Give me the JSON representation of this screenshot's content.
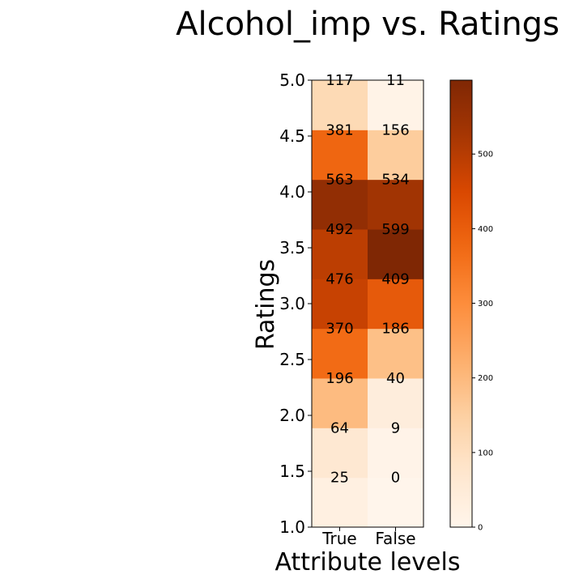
{
  "chart_data": {
    "type": "heatmap",
    "title": "Alcohol_imp vs. Ratings",
    "xlabel": "Attribute levels",
    "ylabel": "Ratings",
    "x_categories": [
      "True",
      "False"
    ],
    "y_categories": [
      "1.0",
      "1.5",
      "2.0",
      "2.5",
      "3.0",
      "3.5",
      "4.0",
      "4.5",
      "5.0"
    ],
    "y_ticks": [
      "1.0",
      "1.5",
      "2.0",
      "2.5",
      "3.0",
      "3.5",
      "4.0",
      "4.5",
      "5.0"
    ],
    "values": [
      [
        25,
        0
      ],
      [
        64,
        9
      ],
      [
        196,
        40
      ],
      [
        370,
        186
      ],
      [
        476,
        409
      ],
      [
        492,
        599
      ],
      [
        563,
        534
      ],
      [
        381,
        156
      ],
      [
        117,
        11
      ]
    ],
    "colormap": "Oranges",
    "colorbar": {
      "min": 0,
      "max": 599,
      "ticks": [
        "0",
        "100",
        "200",
        "300",
        "400",
        "500"
      ]
    }
  }
}
